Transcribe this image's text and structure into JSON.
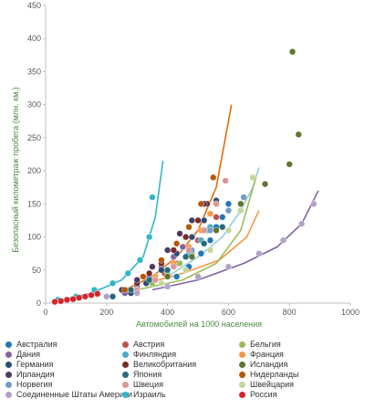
{
  "chart_data": {
    "type": "scatter",
    "title": "",
    "xlabel": "Автомобилей на 1000 населения",
    "ylabel": "Безопасный километраж пробега (млн. км.)",
    "xlim": [
      0,
      1000
    ],
    "ylim": [
      0,
      450
    ],
    "x_ticks": [
      "0",
      "200",
      "400",
      "600",
      "800",
      "1000"
    ],
    "y_ticks": [
      "0",
      "50",
      "100",
      "150",
      "200",
      "250",
      "300",
      "350",
      "400",
      "450"
    ],
    "grid": false,
    "legend_position": "bottom",
    "series": [
      {
        "name": "Австралия",
        "color": "#1f77b4",
        "points": [
          [
            430,
            40
          ],
          [
            470,
            55
          ],
          [
            510,
            75
          ],
          [
            540,
            95
          ],
          [
            560,
            115
          ],
          [
            580,
            130
          ],
          [
            600,
            150
          ]
        ]
      },
      {
        "name": "Австрия",
        "color": "#c0504d",
        "points": [
          [
            350,
            30
          ],
          [
            390,
            45
          ],
          [
            430,
            60
          ],
          [
            470,
            80
          ],
          [
            500,
            95
          ],
          [
            530,
            110
          ],
          [
            560,
            130
          ]
        ]
      },
      {
        "name": "Бельгия",
        "color": "#9bbb59",
        "points": [
          [
            300,
            20
          ],
          [
            350,
            30
          ],
          [
            400,
            45
          ],
          [
            440,
            60
          ],
          [
            480,
            75
          ],
          [
            510,
            95
          ],
          [
            530,
            110
          ]
        ]
      },
      {
        "name": "Дания",
        "color": "#8064a2",
        "points": [
          [
            260,
            15
          ],
          [
            300,
            25
          ],
          [
            340,
            40
          ],
          [
            380,
            55
          ],
          [
            420,
            70
          ],
          [
            450,
            85
          ],
          [
            480,
            100
          ]
        ]
      },
      {
        "name": "Финляндия",
        "color": "#4bacc6",
        "points": [
          [
            300,
            20
          ],
          [
            360,
            35
          ],
          [
            420,
            55
          ],
          [
            470,
            75
          ],
          [
            510,
            95
          ],
          [
            540,
            115
          ]
        ]
      },
      {
        "name": "Франция",
        "color": "#f79646",
        "points": [
          [
            300,
            20
          ],
          [
            360,
            40
          ],
          [
            420,
            60
          ],
          [
            470,
            85
          ],
          [
            510,
            110
          ],
          [
            540,
            135
          ],
          [
            560,
            150
          ]
        ]
      },
      {
        "name": "Германия",
        "color": "#2c4d75",
        "points": [
          [
            280,
            15
          ],
          [
            330,
            30
          ],
          [
            380,
            50
          ],
          [
            430,
            75
          ],
          [
            480,
            100
          ],
          [
            520,
            125
          ],
          [
            560,
            155
          ]
        ]
      },
      {
        "name": "Великобритания",
        "color": "#772c2a",
        "points": [
          [
            300,
            30
          ],
          [
            340,
            45
          ],
          [
            380,
            60
          ],
          [
            420,
            80
          ],
          [
            460,
            100
          ],
          [
            500,
            125
          ],
          [
            530,
            150
          ]
        ]
      },
      {
        "name": "Исландия",
        "color": "#5f7530",
        "points": [
          [
            400,
            40
          ],
          [
            480,
            70
          ],
          [
            560,
            110
          ],
          [
            640,
            150
          ],
          [
            720,
            180
          ],
          [
            800,
            210
          ],
          [
            810,
            380
          ],
          [
            830,
            255
          ]
        ]
      },
      {
        "name": "Ирландия",
        "color": "#4d3b62",
        "points": [
          [
            250,
            20
          ],
          [
            300,
            35
          ],
          [
            350,
            55
          ],
          [
            400,
            80
          ],
          [
            440,
            105
          ],
          [
            480,
            125
          ],
          [
            520,
            150
          ]
        ]
      },
      {
        "name": "Япония",
        "color": "#276a7c",
        "points": [
          [
            220,
            10
          ],
          [
            280,
            20
          ],
          [
            340,
            35
          ],
          [
            400,
            50
          ],
          [
            460,
            70
          ],
          [
            520,
            90
          ],
          [
            580,
            115
          ]
        ]
      },
      {
        "name": "Нидерланды",
        "color": "#b65708",
        "points": [
          [
            260,
            20
          ],
          [
            320,
            40
          ],
          [
            380,
            65
          ],
          [
            430,
            90
          ],
          [
            470,
            115
          ],
          [
            510,
            150
          ],
          [
            550,
            190
          ]
        ]
      },
      {
        "name": "Норвегия",
        "color": "#729aca",
        "points": [
          [
            300,
            20
          ],
          [
            360,
            35
          ],
          [
            420,
            55
          ],
          [
            480,
            80
          ],
          [
            540,
            110
          ],
          [
            600,
            140
          ],
          [
            650,
            160
          ]
        ]
      },
      {
        "name": "Швеция",
        "color": "#d99694",
        "points": [
          [
            300,
            20
          ],
          [
            360,
            35
          ],
          [
            420,
            55
          ],
          [
            470,
            80
          ],
          [
            520,
            110
          ],
          [
            560,
            150
          ],
          [
            590,
            185
          ]
        ]
      },
      {
        "name": "Швейцария",
        "color": "#c3d69b",
        "points": [
          [
            300,
            15
          ],
          [
            380,
            30
          ],
          [
            460,
            50
          ],
          [
            540,
            80
          ],
          [
            600,
            110
          ],
          [
            640,
            140
          ],
          [
            680,
            190
          ]
        ]
      },
      {
        "name": "Соединенные Штаты Америки",
        "color": "#b2a1c7",
        "points": [
          [
            200,
            10
          ],
          [
            300,
            15
          ],
          [
            400,
            25
          ],
          [
            500,
            40
          ],
          [
            600,
            55
          ],
          [
            700,
            75
          ],
          [
            780,
            95
          ],
          [
            840,
            120
          ],
          [
            880,
            150
          ]
        ]
      },
      {
        "name": "Израиль",
        "color": "#31b6c7",
        "points": [
          [
            40,
            5
          ],
          [
            100,
            10
          ],
          [
            160,
            20
          ],
          [
            220,
            30
          ],
          [
            270,
            45
          ],
          [
            310,
            65
          ],
          [
            340,
            100
          ],
          [
            350,
            160
          ]
        ]
      },
      {
        "name": "Россия",
        "color": "#d6242a",
        "points": [
          [
            30,
            2
          ],
          [
            50,
            3
          ],
          [
            70,
            5
          ],
          [
            90,
            6
          ],
          [
            110,
            8
          ],
          [
            130,
            10
          ],
          [
            150,
            12
          ],
          [
            170,
            14
          ]
        ]
      }
    ],
    "trend_lines": [
      {
        "color": "#31b6c7",
        "points": [
          [
            50,
            5
          ],
          [
            150,
            15
          ],
          [
            250,
            35
          ],
          [
            320,
            70
          ],
          [
            360,
            130
          ],
          [
            385,
            215
          ]
        ]
      },
      {
        "color": "#e36c09",
        "points": [
          [
            260,
            20
          ],
          [
            350,
            40
          ],
          [
            430,
            70
          ],
          [
            500,
            110
          ],
          [
            560,
            175
          ],
          [
            610,
            300
          ]
        ]
      },
      {
        "color": "#93cddd",
        "points": [
          [
            400,
            40
          ],
          [
            500,
            70
          ],
          [
            580,
            100
          ],
          [
            640,
            140
          ],
          [
            680,
            175
          ],
          [
            700,
            205
          ]
        ]
      },
      {
        "color": "#f79646",
        "points": [
          [
            330,
            30
          ],
          [
            450,
            45
          ],
          [
            570,
            65
          ],
          [
            660,
            100
          ],
          [
            700,
            140
          ]
        ]
      },
      {
        "color": "#9bbb59",
        "points": [
          [
            300,
            20
          ],
          [
            450,
            35
          ],
          [
            560,
            60
          ],
          [
            640,
            110
          ],
          [
            690,
            190
          ]
        ]
      },
      {
        "color": "#8064a2",
        "points": [
          [
            350,
            20
          ],
          [
            500,
            35
          ],
          [
            650,
            60
          ],
          [
            760,
            85
          ],
          [
            840,
            120
          ],
          [
            895,
            170
          ]
        ]
      }
    ]
  },
  "legend": [
    {
      "label": "Австралия",
      "color": "#1f77b4"
    },
    {
      "label": "Австрия",
      "color": "#c0504d"
    },
    {
      "label": "Бельгия",
      "color": "#9bbb59"
    },
    {
      "label": "Дания",
      "color": "#8064a2"
    },
    {
      "label": "Финляндия",
      "color": "#4bacc6"
    },
    {
      "label": "Франция",
      "color": "#f79646"
    },
    {
      "label": "Германия",
      "color": "#2c4d75"
    },
    {
      "label": "Великобритания",
      "color": "#772c2a"
    },
    {
      "label": "Исландия",
      "color": "#5f7530"
    },
    {
      "label": "Ирландия",
      "color": "#4d3b62"
    },
    {
      "label": "Япония",
      "color": "#276a7c"
    },
    {
      "label": "Нидерланды",
      "color": "#b65708"
    },
    {
      "label": "Норвегия",
      "color": "#729aca"
    },
    {
      "label": "Швеция",
      "color": "#d99694"
    },
    {
      "label": "Швейцария",
      "color": "#c3d69b"
    },
    {
      "label": "Соединенные Штаты Америки",
      "color": "#b2a1c7"
    },
    {
      "label": "Израиль",
      "color": "#31b6c7"
    },
    {
      "label": "Россия",
      "color": "#d6242a"
    }
  ]
}
